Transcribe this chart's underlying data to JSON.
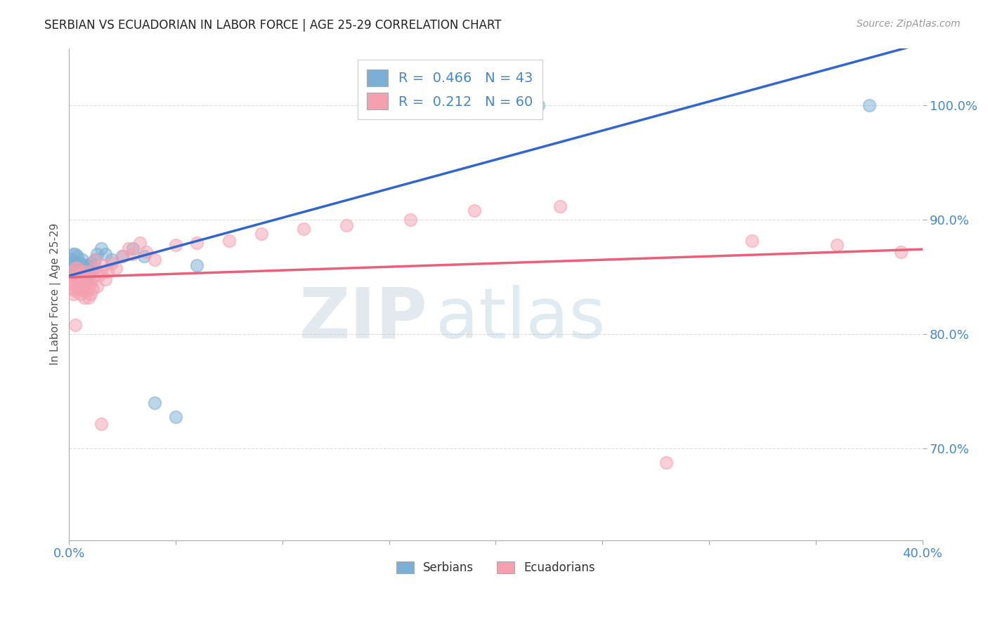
{
  "title": "SERBIAN VS ECUADORIAN IN LABOR FORCE | AGE 25-29 CORRELATION CHART",
  "source": "Source: ZipAtlas.com",
  "ylabel": "In Labor Force | Age 25-29",
  "serbian_color": "#7BAFD4",
  "ecuadorian_color": "#F4A0B0",
  "serbian_line_color": "#3366CC",
  "ecuadorian_line_color": "#E8607A",
  "R_serbian": 0.466,
  "N_serbian": 43,
  "R_ecuadorian": 0.212,
  "N_ecuadorian": 60,
  "serbian_x": [
    0.001,
    0.001,
    0.002,
    0.002,
    0.002,
    0.003,
    0.003,
    0.003,
    0.003,
    0.003,
    0.004,
    0.004,
    0.004,
    0.005,
    0.005,
    0.005,
    0.005,
    0.006,
    0.006,
    0.006,
    0.007,
    0.007,
    0.008,
    0.008,
    0.009,
    0.009,
    0.01,
    0.011,
    0.012,
    0.013,
    0.015,
    0.017,
    0.02,
    0.025,
    0.03,
    0.035,
    0.04,
    0.05,
    0.06,
    0.175,
    0.185,
    0.22,
    0.375
  ],
  "serbian_y": [
    0.86,
    0.865,
    0.855,
    0.862,
    0.87,
    0.858,
    0.863,
    0.855,
    0.862,
    0.87,
    0.85,
    0.86,
    0.868,
    0.845,
    0.855,
    0.862,
    0.855,
    0.848,
    0.858,
    0.865,
    0.852,
    0.86,
    0.848,
    0.858,
    0.852,
    0.86,
    0.862,
    0.858,
    0.865,
    0.87,
    0.875,
    0.87,
    0.865,
    0.868,
    0.875,
    0.868,
    0.74,
    0.728,
    0.86,
    1.0,
    0.995,
    1.0,
    1.0
  ],
  "ecuadorian_x": [
    0.001,
    0.001,
    0.002,
    0.002,
    0.002,
    0.003,
    0.003,
    0.003,
    0.004,
    0.004,
    0.004,
    0.005,
    0.005,
    0.005,
    0.006,
    0.006,
    0.006,
    0.007,
    0.007,
    0.007,
    0.008,
    0.008,
    0.008,
    0.009,
    0.009,
    0.01,
    0.01,
    0.011,
    0.011,
    0.012,
    0.012,
    0.013,
    0.014,
    0.015,
    0.016,
    0.017,
    0.018,
    0.02,
    0.022,
    0.025,
    0.028,
    0.03,
    0.033,
    0.036,
    0.04,
    0.05,
    0.06,
    0.075,
    0.09,
    0.11,
    0.13,
    0.16,
    0.19,
    0.23,
    0.28,
    0.32,
    0.36,
    0.39,
    0.003,
    0.015
  ],
  "ecuadorian_y": [
    0.848,
    0.84,
    0.835,
    0.845,
    0.855,
    0.838,
    0.85,
    0.858,
    0.84,
    0.85,
    0.858,
    0.835,
    0.845,
    0.852,
    0.838,
    0.848,
    0.855,
    0.832,
    0.842,
    0.85,
    0.838,
    0.848,
    0.855,
    0.832,
    0.842,
    0.835,
    0.845,
    0.84,
    0.85,
    0.858,
    0.865,
    0.842,
    0.852,
    0.855,
    0.86,
    0.848,
    0.855,
    0.862,
    0.858,
    0.868,
    0.875,
    0.87,
    0.88,
    0.872,
    0.865,
    0.878,
    0.88,
    0.882,
    0.888,
    0.892,
    0.895,
    0.9,
    0.908,
    0.912,
    0.688,
    0.882,
    0.878,
    0.872,
    0.808,
    0.722
  ],
  "xmin": 0.0,
  "xmax": 0.4,
  "ymin": 0.62,
  "ymax": 1.05,
  "yticks": [
    0.7,
    0.8,
    0.9,
    1.0
  ],
  "grid_color": "#DDDDDD",
  "bg_color": "#FFFFFF",
  "title_color": "#222222",
  "axis_label_color": "#4488CC",
  "watermark_color": "#C8D8E8",
  "watermark_zip_color": "#B0C8DC",
  "watermark_atlas_color": "#A0C0D8"
}
